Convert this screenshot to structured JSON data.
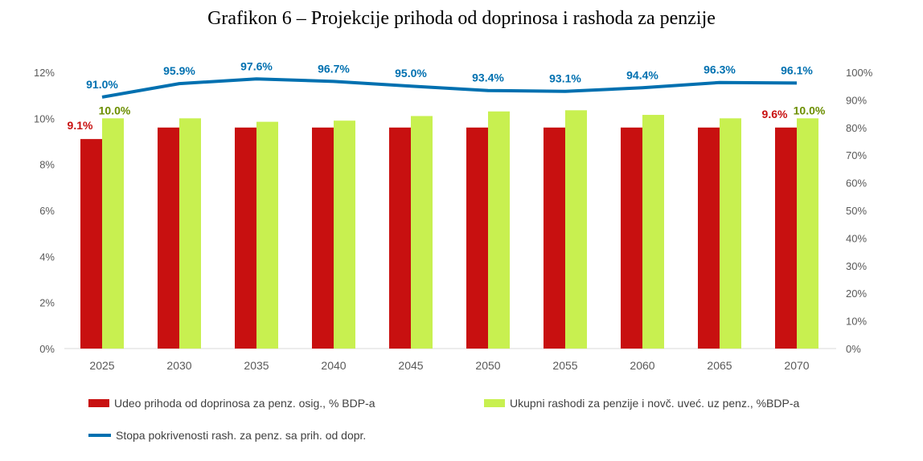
{
  "chart_data": {
    "type": "bar",
    "title": "Grafikon 6 – Projekcije prihoda od doprinosa i rashoda za penzije",
    "categories": [
      "2025",
      "2030",
      "2035",
      "2040",
      "2045",
      "2050",
      "2055",
      "2060",
      "2065",
      "2070"
    ],
    "series": [
      {
        "name": "Udeo prihoda od doprinosa za penz. osig., % BDP-a",
        "type": "bar",
        "axis": "left",
        "color": "#c81010",
        "values": [
          9.1,
          9.6,
          9.6,
          9.6,
          9.6,
          9.6,
          9.6,
          9.6,
          9.6,
          9.6
        ],
        "labels": {
          "0": "9.1%",
          "9": "9.6%"
        }
      },
      {
        "name": "Ukupni rashodi za penzije i novč. uveć. uz penz., %BDP-a",
        "type": "bar",
        "axis": "left",
        "color": "#c8f050",
        "values": [
          10.0,
          10.0,
          9.85,
          9.9,
          10.1,
          10.3,
          10.35,
          10.15,
          10.0,
          10.0
        ],
        "labels": {
          "0": "10.0%",
          "9": "10.0%"
        }
      },
      {
        "name": "Stopa pokrivenosti rash. za penz. sa prih. od dopr.",
        "type": "line",
        "axis": "right",
        "color": "#0070b0",
        "values": [
          91.0,
          95.9,
          97.6,
          96.7,
          95.0,
          93.4,
          93.1,
          94.4,
          96.3,
          96.1
        ],
        "labels": [
          "91.0%",
          "95.9%",
          "97.6%",
          "96.7%",
          "95.0%",
          "93.4%",
          "93.1%",
          "94.4%",
          "96.3%",
          "96.1%"
        ]
      }
    ],
    "y_left": {
      "range": [
        0,
        12
      ],
      "ticks": [
        "0%",
        "2%",
        "4%",
        "6%",
        "8%",
        "10%",
        "12%"
      ]
    },
    "y_right": {
      "range": [
        0,
        100
      ],
      "ticks": [
        "0%",
        "10%",
        "20%",
        "30%",
        "40%",
        "50%",
        "60%",
        "70%",
        "80%",
        "90%",
        "100%"
      ]
    },
    "legend": "bottom",
    "grid": false
  }
}
